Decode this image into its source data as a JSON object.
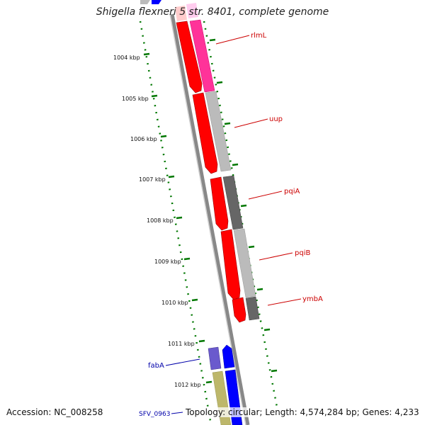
{
  "title": "Shigella flexneri 5 str. 8401, complete genome",
  "footer": {
    "accession": "Accession: NC_008258",
    "summary": "Topology: circular; Length: 4,574,284 bp; Genes: 4,233"
  },
  "ticks": [
    "1004 kbp",
    "1005 kbp",
    "1006 kbp",
    "1007 kbp",
    "1008 kbp",
    "1009 kbp",
    "1010 kbp",
    "1011 kbp",
    "1012 kbp"
  ],
  "genes": [
    {
      "label": "rlmL",
      "color": "#cc0000"
    },
    {
      "label": "uup",
      "color": "#cc0000"
    },
    {
      "label": "pqiA",
      "color": "#cc0000"
    },
    {
      "label": "pqiB",
      "color": "#cc0000"
    },
    {
      "label": "ymbA",
      "color": "#cc0000"
    },
    {
      "label": "fabA",
      "color": "#0000aa"
    },
    {
      "label": "SFV_0963",
      "color": "#0000aa"
    }
  ],
  "colors": {
    "forward_cds": "#ff0000",
    "reverse_magenta": "#ff3399",
    "reverse_gray_light": "#bbbbbb",
    "reverse_gray_dark": "#666666",
    "pink": "#ffcccc",
    "blue": "#0000ff",
    "purple": "#6a5acd",
    "olive": "#bdb76b",
    "tick_green": "#007700",
    "backbone": "#888888"
  }
}
